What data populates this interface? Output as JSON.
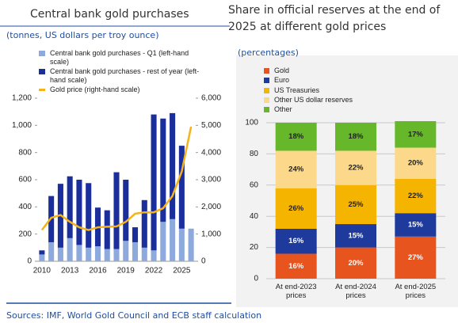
{
  "chart_data": [
    {
      "type": "bar",
      "stacked": true,
      "title": "Central bank gold purchases",
      "subtitle": "(tonnes, US dollars per troy ounce)",
      "categories": [
        "2010",
        null,
        null,
        "2013",
        null,
        null,
        "2016",
        null,
        null,
        "2019",
        null,
        null,
        "2022",
        null,
        null,
        "2025",
        null
      ],
      "series": [
        {
          "name": "Central bank gold purchases - Q1 (left-hand scale)",
          "color": "#8ea9db",
          "values": [
            50,
            140,
            100,
            170,
            120,
            100,
            110,
            90,
            90,
            150,
            140,
            100,
            80,
            290,
            310,
            240,
            240
          ]
        },
        {
          "name": "Central bank gold purchases - rest of year (left-hand scale)",
          "color": "#1a2e9c",
          "values": [
            30,
            340,
            470,
            455,
            480,
            475,
            285,
            285,
            565,
            450,
            110,
            350,
            1000,
            760,
            780,
            610,
            null
          ]
        },
        {
          "name": "Gold price (right-hand scale)",
          "type": "line",
          "axis": "y2",
          "color": "#f5b21b",
          "values": [
            1150,
            1600,
            1700,
            1450,
            1250,
            1150,
            1250,
            1270,
            1280,
            1450,
            1750,
            1800,
            1800,
            1950,
            2400,
            3300,
            4950
          ]
        }
      ],
      "ylim": [
        0,
        1200
      ],
      "yticks": [
        0,
        200,
        400,
        600,
        800,
        {
          "value": 1000,
          "label": "1,000"
        },
        {
          "value": 1200,
          "label": "1,200"
        }
      ],
      "y2lim": [
        0,
        6000
      ],
      "y2ticks": [
        0,
        {
          "value": 1000,
          "label": "1,000"
        },
        {
          "value": 2000,
          "label": "2,000"
        },
        {
          "value": 3000,
          "label": "3,000"
        },
        {
          "value": 4000,
          "label": "4,000"
        },
        {
          "value": 5000,
          "label": "5,000"
        },
        {
          "value": 6000,
          "label": "6,000"
        }
      ],
      "grid": false,
      "footer": "Sources: IMF, World Gold Council and ECB staff calculation"
    },
    {
      "type": "bar",
      "stacked": true,
      "title": "Share in official reserves at the end of 2025 at different gold prices",
      "subtitle": "(percentages)",
      "categories": [
        "At end-2023 prices",
        "At end-2024 prices",
        "At end-2025 prices"
      ],
      "series": [
        {
          "name": "Gold",
          "color": "#e8541e",
          "values": [
            16,
            20,
            27
          ],
          "value_labels": [
            "16%",
            "20%",
            "27%"
          ]
        },
        {
          "name": "Euro",
          "color": "#1d3a9c",
          "values": [
            16,
            15,
            15
          ],
          "value_labels": [
            "16%",
            "15%",
            "15%"
          ]
        },
        {
          "name": "US Treasuries",
          "color": "#f5b400",
          "values": [
            26,
            25,
            22
          ],
          "value_labels": [
            "26%",
            "25%",
            "22%"
          ]
        },
        {
          "name": "Other US dollar reserves",
          "color": "#fcd98a",
          "values": [
            24,
            22,
            20
          ],
          "value_labels": [
            "24%",
            "22%",
            "20%"
          ]
        },
        {
          "name": "Other",
          "color": "#66b82a",
          "values": [
            18,
            18,
            17
          ],
          "value_labels": [
            "18%",
            "18%",
            "17%"
          ]
        }
      ],
      "ylim": [
        0,
        100
      ],
      "yticks": [
        0,
        20,
        40,
        60,
        80,
        100
      ],
      "grid": true
    }
  ]
}
